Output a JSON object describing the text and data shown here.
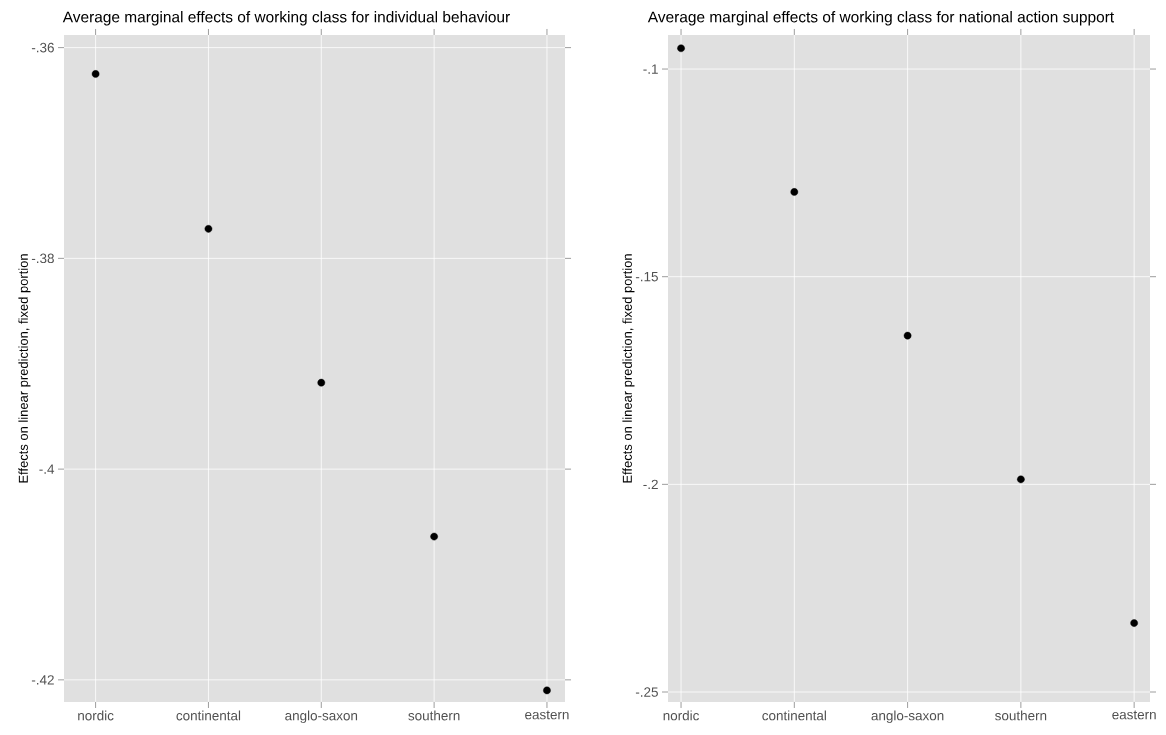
{
  "chart_data": [
    {
      "type": "scatter",
      "title": "Average marginal effects of working class for individual behaviour",
      "ylabel": "Effects on linear prediction, fixed portion",
      "categories": [
        "nordic",
        "continental",
        "anglo-saxon",
        "southern",
        "eastern"
      ],
      "values": [
        -0.3625,
        -0.3772,
        -0.3918,
        -0.4064,
        -0.421
      ],
      "color": "#000000",
      "marker": "circle",
      "ylim": [
        -0.4221,
        -0.3588
      ],
      "yticks": [
        {
          "value": -0.36,
          "label": "-.36"
        },
        {
          "value": -0.38,
          "label": "-.38"
        },
        {
          "value": -0.4,
          "label": "-.4"
        },
        {
          "value": -0.42,
          "label": "-.42"
        }
      ],
      "grid": true
    },
    {
      "type": "scatter",
      "title": "Average marginal effects of working class for national action support",
      "ylabel": "Effects on linear prediction, fixed portion",
      "categories": [
        "nordic",
        "continental",
        "anglo-saxon",
        "southern",
        "eastern"
      ],
      "values": [
        -0.095,
        -0.1296,
        -0.1642,
        -0.1988,
        -0.2334
      ],
      "color": "#000000",
      "marker": "circle",
      "ylim": [
        -0.2524,
        -0.0918
      ],
      "yticks": [
        {
          "value": -0.1,
          "label": "-.1"
        },
        {
          "value": -0.15,
          "label": "-.15"
        },
        {
          "value": -0.2,
          "label": "-.2"
        },
        {
          "value": -0.25,
          "label": "-.25"
        }
      ],
      "grid": true
    }
  ]
}
